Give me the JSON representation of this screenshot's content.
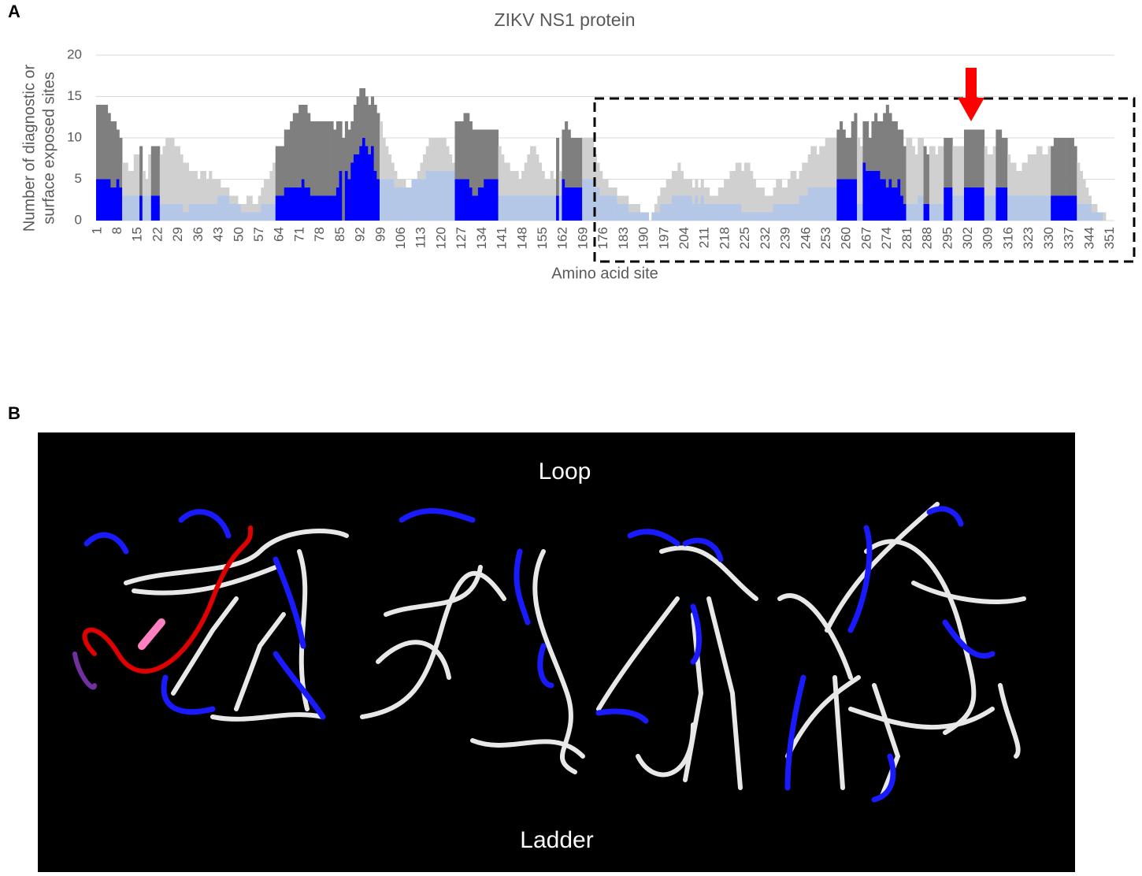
{
  "panels": {
    "a": "A",
    "b": "B"
  },
  "chart_data": {
    "type": "bar",
    "title": "ZIKV NS1 protein",
    "y_label": [
      "Number of diagnostic or",
      "surface exposed sites"
    ],
    "x_label": "Amino acid site",
    "categories": [
      1,
      null,
      null,
      null,
      null,
      null,
      null,
      8,
      null,
      null,
      null,
      null,
      null,
      null,
      15,
      null,
      null,
      null,
      null,
      null,
      null,
      22,
      null,
      null,
      null,
      null,
      null,
      null,
      29,
      null,
      null,
      null,
      null,
      null,
      null,
      36,
      null,
      null,
      null,
      null,
      null,
      null,
      43,
      null,
      null,
      null,
      null,
      null,
      null,
      50,
      null,
      null,
      null,
      null,
      null,
      null,
      57,
      null,
      null,
      null,
      null,
      null,
      null,
      64,
      null,
      null,
      null,
      null,
      null,
      null,
      71,
      null,
      null,
      null,
      null,
      null,
      null,
      78,
      null,
      null,
      null,
      null,
      null,
      null,
      85,
      null,
      null,
      null,
      null,
      null,
      null,
      92,
      null,
      null,
      null,
      null,
      null,
      null,
      99,
      null,
      null,
      null,
      null,
      null,
      null,
      106,
      null,
      null,
      null,
      null,
      null,
      null,
      113,
      null,
      null,
      null,
      null,
      null,
      null,
      120,
      null,
      null,
      null,
      null,
      null,
      null,
      127,
      null,
      null,
      null,
      null,
      null,
      null,
      134,
      null,
      null,
      null,
      null,
      null,
      null,
      141,
      null,
      null,
      null,
      null,
      null,
      null,
      148,
      null,
      null,
      null,
      null,
      null,
      null,
      155,
      null,
      null,
      null,
      null,
      null,
      null,
      162,
      null,
      null,
      null,
      null,
      null,
      null,
      169,
      null,
      null,
      null,
      null,
      null,
      null,
      176,
      null,
      null,
      null,
      null,
      null,
      null,
      183,
      null,
      null,
      null,
      null,
      null,
      null,
      190,
      null,
      null,
      null,
      null,
      null,
      null,
      197,
      null,
      null,
      null,
      null,
      null,
      null,
      204,
      null,
      null,
      null,
      null,
      null,
      null,
      211,
      null,
      null,
      null,
      null,
      null,
      null,
      218,
      null,
      null,
      null,
      null,
      null,
      null,
      225,
      null,
      null,
      null,
      null,
      null,
      null,
      232,
      null,
      null,
      null,
      null,
      null,
      null,
      239,
      null,
      null,
      null,
      null,
      null,
      null,
      246,
      null,
      null,
      null,
      null,
      null,
      null,
      253,
      null,
      null,
      null,
      null,
      null,
      null,
      260,
      null,
      null,
      null,
      null,
      null,
      null,
      267,
      null,
      null,
      null,
      null,
      null,
      null,
      274,
      null,
      null,
      null,
      null,
      null,
      null,
      281,
      null,
      null,
      null,
      null,
      null,
      null,
      288,
      null,
      null,
      null,
      null,
      null,
      null,
      295,
      null,
      null,
      null,
      null,
      null,
      null,
      302,
      null,
      null,
      null,
      null,
      null,
      null,
      309,
      null,
      null,
      null,
      null,
      null,
      null,
      316,
      null,
      null,
      null,
      null,
      null,
      null,
      323,
      null,
      null,
      null,
      null,
      null,
      null,
      330,
      null,
      null,
      null,
      null,
      null,
      null,
      337,
      null,
      null,
      null,
      null,
      null,
      null,
      344,
      null,
      null,
      null,
      null,
      null,
      null,
      351,
      null
    ],
    "series": [
      {
        "color": "#b4c7e7",
        "highlight_color": "#0000ff",
        "values": [
          5,
          5,
          5,
          5,
          5,
          4,
          4,
          5,
          4,
          3,
          3,
          3,
          3,
          3,
          3,
          3,
          3,
          3,
          3,
          3,
          3,
          3,
          2,
          2,
          2,
          2,
          2,
          2,
          2,
          2,
          1,
          1,
          2,
          2,
          2,
          2,
          2,
          2,
          2,
          2,
          2,
          2,
          3,
          3,
          3,
          3,
          2,
          2,
          2,
          2,
          1,
          1,
          1,
          1,
          1,
          1,
          1,
          2,
          2,
          2,
          2,
          2,
          3,
          3,
          3,
          4,
          4,
          4,
          4,
          4,
          4,
          5,
          4,
          4,
          3,
          3,
          3,
          3,
          3,
          3,
          3,
          3,
          3,
          4,
          6,
          0,
          6,
          5,
          7,
          8,
          8,
          9,
          10,
          9,
          8,
          9,
          6,
          5,
          5,
          5,
          5,
          5,
          5,
          4,
          4,
          4,
          4,
          4,
          4,
          5,
          5,
          5,
          5,
          5,
          6,
          6,
          6,
          6,
          6,
          6,
          6,
          6,
          6,
          6,
          5,
          5,
          5,
          5,
          5,
          4,
          3,
          3,
          4,
          4,
          5,
          5,
          5,
          5,
          5,
          3,
          3,
          3,
          3,
          3,
          3,
          3,
          3,
          3,
          3,
          3,
          3,
          3,
          3,
          3,
          3,
          3,
          3,
          3,
          3,
          3,
          3,
          5,
          4,
          4,
          4,
          4,
          4,
          4,
          5,
          5,
          5,
          5,
          4,
          4,
          3,
          3,
          3,
          3,
          3,
          3,
          2,
          2,
          2,
          2,
          1,
          1,
          1,
          1,
          1,
          1,
          1,
          0,
          1,
          1,
          1,
          2,
          2,
          2,
          2,
          3,
          3,
          3,
          3,
          3,
          3,
          3,
          2,
          3,
          2,
          3,
          2,
          2,
          2,
          2,
          2,
          2,
          2,
          2,
          2,
          2,
          2,
          2,
          2,
          1,
          1,
          1,
          1,
          1,
          1,
          1,
          1,
          1,
          1,
          1,
          2,
          2,
          2,
          2,
          2,
          2,
          2,
          2,
          2,
          3,
          3,
          3,
          4,
          4,
          4,
          4,
          4,
          4,
          4,
          4,
          4,
          4,
          5,
          5,
          5,
          5,
          5,
          5,
          5,
          2,
          2,
          7,
          6,
          6,
          6,
          6,
          6,
          5,
          5,
          4,
          5,
          4,
          4,
          5,
          3,
          2,
          2,
          2,
          2,
          2,
          3,
          3,
          2,
          2,
          2,
          2,
          2,
          2,
          2,
          4,
          4,
          4,
          3,
          3,
          3,
          3,
          4,
          4,
          4,
          4,
          4,
          4,
          4,
          3,
          3,
          3,
          3,
          4,
          4,
          4,
          4,
          3,
          3,
          3,
          3,
          3,
          3,
          3,
          3,
          3,
          3,
          3,
          3,
          3,
          3,
          3,
          3,
          3,
          3,
          3,
          3,
          3,
          3,
          3,
          3,
          2,
          2,
          2,
          2,
          2,
          1,
          1,
          1,
          1,
          0,
          0,
          0,
          0
        ]
      },
      {
        "color": "#d0d0d0",
        "highlight_color": "#7f7f7f",
        "values": [
          9,
          9,
          9,
          9,
          8,
          8,
          8,
          6,
          6,
          4,
          4,
          3,
          3,
          5,
          5,
          6,
          3,
          2,
          5,
          6,
          6,
          6,
          6,
          7,
          8,
          8,
          8,
          7,
          7,
          6,
          6,
          6,
          4,
          4,
          4,
          3,
          4,
          4,
          3,
          4,
          3,
          3,
          2,
          1,
          1,
          1,
          1,
          1,
          1,
          0,
          1,
          1,
          2,
          2,
          1,
          1,
          2,
          2,
          3,
          3,
          4,
          5,
          6,
          6,
          6,
          7,
          7,
          8,
          9,
          9,
          10,
          9,
          10,
          9,
          9,
          9,
          9,
          9,
          9,
          9,
          9,
          9,
          8,
          8,
          6,
          10,
          6,
          6,
          5,
          6,
          7,
          7,
          6,
          6,
          6,
          6,
          8,
          8,
          7,
          5,
          4,
          3,
          2,
          2,
          1,
          1,
          1,
          0,
          0,
          0,
          0,
          1,
          2,
          3,
          3,
          4,
          4,
          4,
          4,
          4,
          4,
          3,
          2,
          1,
          7,
          7,
          7,
          8,
          8,
          8,
          8,
          8,
          7,
          7,
          6,
          6,
          6,
          6,
          6,
          6,
          5,
          4,
          4,
          3,
          3,
          3,
          2,
          3,
          4,
          5,
          6,
          6,
          5,
          4,
          3,
          2,
          2,
          3,
          2,
          7,
          3,
          6,
          8,
          7,
          6,
          6,
          6,
          6,
          5,
          5,
          5,
          5,
          4,
          3,
          3,
          2,
          2,
          1,
          1,
          1,
          1,
          1,
          1,
          1,
          1,
          1,
          1,
          1,
          0,
          0,
          0,
          0,
          0,
          1,
          2,
          2,
          2,
          3,
          3,
          3,
          3,
          4,
          3,
          2,
          2,
          2,
          2,
          2,
          2,
          2,
          2,
          2,
          1,
          1,
          1,
          2,
          2,
          3,
          3,
          4,
          4,
          5,
          5,
          5,
          6,
          6,
          5,
          4,
          3,
          3,
          3,
          2,
          2,
          2,
          2,
          3,
          3,
          2,
          2,
          3,
          4,
          4,
          3,
          3,
          4,
          4,
          4,
          5,
          5,
          4,
          5,
          5,
          6,
          6,
          6,
          6,
          6,
          7,
          6,
          5,
          5,
          7,
          8,
          8,
          7,
          5,
          6,
          4,
          6,
          7,
          6,
          7,
          8,
          10,
          8,
          8,
          8,
          6,
          8,
          7,
          8,
          8,
          7,
          6,
          7,
          7,
          7,
          6,
          7,
          7,
          6,
          7,
          7,
          6,
          6,
          6,
          6,
          6,
          6,
          6,
          7,
          7,
          7,
          7,
          7,
          7,
          7,
          6,
          5,
          5,
          6,
          7,
          7,
          6,
          6,
          5,
          4,
          4,
          3,
          3,
          4,
          4,
          5,
          5,
          5,
          6,
          6,
          5,
          5,
          6,
          6,
          7,
          7,
          7,
          7,
          7,
          7,
          7,
          6,
          5,
          4,
          3,
          2,
          1,
          1,
          1,
          0,
          0,
          1,
          0,
          0,
          0
        ]
      }
    ],
    "highlight_ranges": [
      [
        1,
        9
      ],
      [
        16,
        16
      ],
      [
        20,
        22
      ],
      [
        63,
        98
      ],
      [
        125,
        139
      ],
      [
        160,
        160
      ],
      [
        162,
        168
      ],
      [
        257,
        263
      ],
      [
        266,
        280
      ],
      [
        287,
        288
      ],
      [
        294,
        296
      ],
      [
        301,
        307
      ],
      [
        312,
        315
      ],
      [
        331,
        339
      ]
    ],
    "ylim": [
      0,
      20
    ],
    "yticks": [
      0,
      5,
      10,
      15,
      20
    ],
    "grid": true
  },
  "structure": {
    "top_label": "Loop",
    "bottom_label": "Ladder"
  }
}
